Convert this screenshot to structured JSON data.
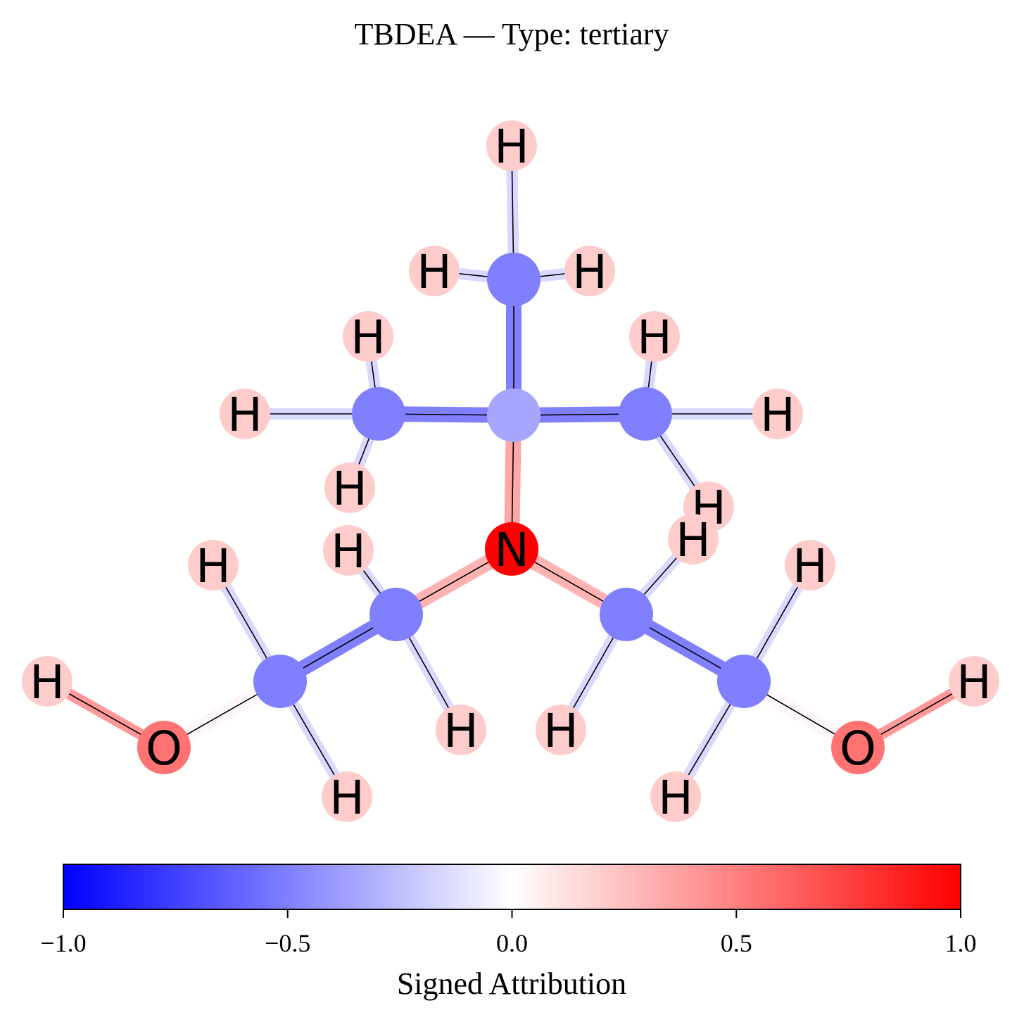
{
  "title": "TBDEA — Type: tertiary",
  "colorbar": {
    "label": "Signed Attribution",
    "ticks": [
      "−1.0",
      "−0.5",
      "0.0",
      "0.5",
      "1.0"
    ],
    "colors": {
      "min": "#0000ff",
      "mid": "#ffffff",
      "max": "#ff0000"
    }
  },
  "molecule": {
    "atoms": [
      {
        "element": "N",
        "attribution": 1.0
      },
      {
        "element": "C",
        "attribution": -0.35
      },
      {
        "element": "C",
        "attribution": -0.5
      },
      {
        "element": "C",
        "attribution": -0.5
      },
      {
        "element": "C",
        "attribution": -0.5
      },
      {
        "element": "C",
        "attribution": -0.5
      },
      {
        "element": "C",
        "attribution": -0.5
      },
      {
        "element": "C",
        "attribution": -0.5
      },
      {
        "element": "C",
        "attribution": -0.5
      },
      {
        "element": "O",
        "attribution": 0.55
      },
      {
        "element": "O",
        "attribution": 0.55
      },
      {
        "element": "H",
        "attribution": 0.2
      },
      {
        "element": "H",
        "attribution": 0.2
      },
      {
        "element": "H",
        "attribution": 0.2
      },
      {
        "element": "H",
        "attribution": 0.2
      },
      {
        "element": "H",
        "attribution": 0.2
      },
      {
        "element": "H",
        "attribution": 0.2
      },
      {
        "element": "H",
        "attribution": 0.2
      },
      {
        "element": "H",
        "attribution": 0.2
      },
      {
        "element": "H",
        "attribution": 0.2
      },
      {
        "element": "H",
        "attribution": 0.2
      },
      {
        "element": "H",
        "attribution": 0.2
      },
      {
        "element": "H",
        "attribution": 0.2
      },
      {
        "element": "H",
        "attribution": 0.2
      },
      {
        "element": "H",
        "attribution": 0.2
      },
      {
        "element": "H",
        "attribution": 0.2
      },
      {
        "element": "H",
        "attribution": 0.2
      },
      {
        "element": "H",
        "attribution": 0.2
      },
      {
        "element": "H",
        "attribution": 0.2
      },
      {
        "element": "H",
        "attribution": 0.2
      }
    ],
    "bonds": [
      {
        "from": 0,
        "to": 1,
        "attribution": 0.35
      },
      {
        "from": 1,
        "to": 2,
        "attribution": -0.5
      },
      {
        "from": 1,
        "to": 3,
        "attribution": -0.5
      },
      {
        "from": 1,
        "to": 4,
        "attribution": -0.5
      },
      {
        "from": 0,
        "to": 5,
        "attribution": 0.3
      },
      {
        "from": 5,
        "to": 6,
        "attribution": -0.5
      },
      {
        "from": 6,
        "to": 9,
        "attribution": 0.03
      },
      {
        "from": 0,
        "to": 7,
        "attribution": 0.3
      },
      {
        "from": 7,
        "to": 8,
        "attribution": -0.5
      },
      {
        "from": 8,
        "to": 10,
        "attribution": 0.03
      },
      {
        "from": 2,
        "to": 11,
        "attribution": -0.15
      },
      {
        "from": 2,
        "to": 12,
        "attribution": -0.15
      },
      {
        "from": 2,
        "to": 13,
        "attribution": -0.15
      },
      {
        "from": 3,
        "to": 14,
        "attribution": -0.15
      },
      {
        "from": 3,
        "to": 15,
        "attribution": -0.15
      },
      {
        "from": 3,
        "to": 16,
        "attribution": -0.15
      },
      {
        "from": 4,
        "to": 17,
        "attribution": -0.15
      },
      {
        "from": 4,
        "to": 18,
        "attribution": -0.15
      },
      {
        "from": 4,
        "to": 19,
        "attribution": -0.15
      },
      {
        "from": 5,
        "to": 20,
        "attribution": -0.15
      },
      {
        "from": 5,
        "to": 21,
        "attribution": -0.15
      },
      {
        "from": 6,
        "to": 22,
        "attribution": -0.15
      },
      {
        "from": 6,
        "to": 23,
        "attribution": -0.15
      },
      {
        "from": 9,
        "to": 24,
        "attribution": 0.4
      },
      {
        "from": 7,
        "to": 25,
        "attribution": -0.15
      },
      {
        "from": 7,
        "to": 26,
        "attribution": -0.15
      },
      {
        "from": 8,
        "to": 27,
        "attribution": -0.15
      },
      {
        "from": 8,
        "to": 28,
        "attribution": -0.15
      },
      {
        "from": 10,
        "to": 29,
        "attribution": 0.4
      }
    ]
  }
}
